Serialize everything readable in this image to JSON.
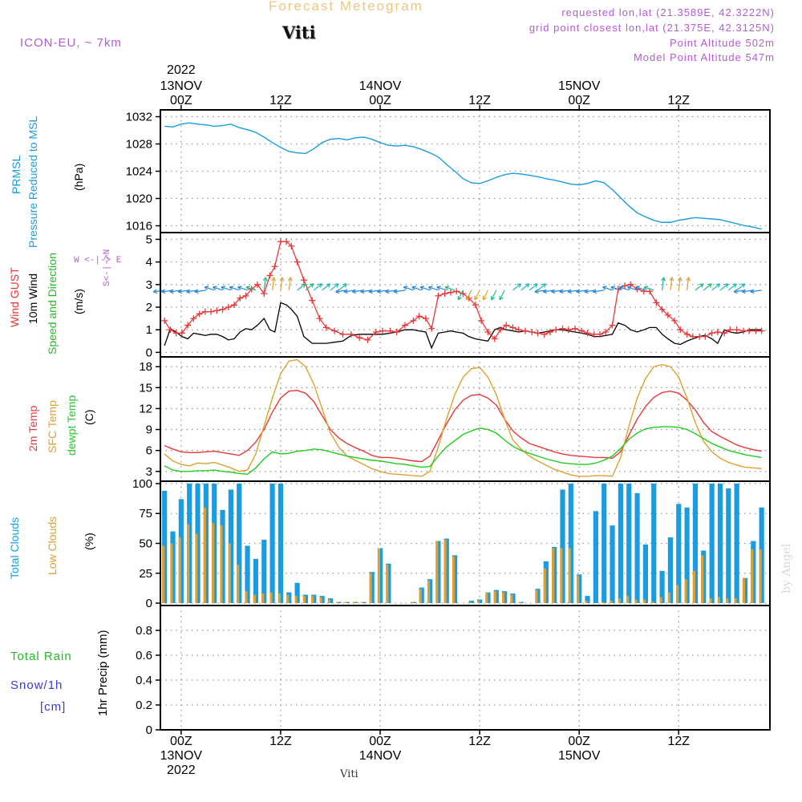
{
  "header": {
    "title": "Forecast Meteogram",
    "station": "Viti",
    "model": "ICON-EU, ~ 7km",
    "requested": "requested lon,lat (21.3589E, 42.3222N)",
    "grid_point": "grid point closest lon,lat (21.375E, 42.3125N)",
    "point_altitude": "Point Altitude 502m",
    "model_altitude": "Model Point Altitude 547m"
  },
  "footer": {
    "station": "Viti",
    "watermark": "by Angel"
  },
  "time_axis": {
    "top_year": "2022",
    "top_labels": [
      {
        "hour": 0,
        "lines": [
          "13NOV",
          "00Z"
        ]
      },
      {
        "hour": 12,
        "lines": [
          "12Z"
        ]
      },
      {
        "hour": 24,
        "lines": [
          "14NOV",
          "00Z"
        ]
      },
      {
        "hour": 36,
        "lines": [
          "12Z"
        ]
      },
      {
        "hour": 48,
        "lines": [
          "15NOV",
          "00Z"
        ]
      },
      {
        "hour": 60,
        "lines": [
          "12Z"
        ]
      }
    ],
    "bottom_labels": [
      {
        "hour": 0,
        "lines": [
          "00Z",
          "13NOV",
          "2022"
        ]
      },
      {
        "hour": 12,
        "lines": [
          "12Z"
        ]
      },
      {
        "hour": 24,
        "lines": [
          "00Z",
          "14NOV"
        ]
      },
      {
        "hour": 36,
        "lines": [
          "12Z"
        ]
      },
      {
        "hour": 48,
        "lines": [
          "00Z",
          "15NOV"
        ]
      },
      {
        "hour": 60,
        "lines": [
          "12Z"
        ]
      }
    ],
    "start_hour": -2.5,
    "end_hour": 71
  },
  "panel_labels": {
    "pressure": {
      "name": "PRMSL",
      "desc": "Pressure Reduced to MSL",
      "unit": "(hPa)",
      "color": "#1a9de0"
    },
    "wind": {
      "gust": "Wind GUST",
      "wind10": "10m Wind",
      "dir": "Speed and Direction",
      "unit": "(m/s)",
      "compass": "W <-|-> E",
      "compass_v": "S<-|->N",
      "gust_color": "#e8393a",
      "wind_color": "#000000",
      "dir_color": "#22bb22",
      "compass_color": "#b45bd6"
    },
    "temp": {
      "t2m": "2m Temp",
      "sfc": "SFC Temp",
      "dew": "dewpt Temp",
      "unit": "(C)",
      "t2m_color": "#e8393a",
      "sfc_color": "#e0a030",
      "dew_color": "#22cc22"
    },
    "clouds": {
      "total": "Total Clouds",
      "low": "Low Clouds",
      "unit": "(%)",
      "total_color": "#1a9de0",
      "low_color": "#e0a030"
    },
    "precip": {
      "rain": "Total  Rain",
      "snow": "Snow/1h",
      "snow_unit": "[cm]",
      "unit": "1hr Precip (mm)",
      "rain_color": "#22bb22",
      "snow_color": "#3a3ae0"
    }
  },
  "chart_data": [
    {
      "type": "line",
      "title": "PRMSL Pressure Reduced to MSL",
      "ylabel": "(hPa)",
      "ylim": [
        1015,
        1033
      ],
      "yticks": [
        1016,
        1020,
        1024,
        1028,
        1032
      ],
      "x": [
        -2,
        -1,
        0,
        1,
        2,
        3,
        4,
        5,
        6,
        7,
        8,
        9,
        10,
        11,
        12,
        13,
        14,
        15,
        16,
        17,
        18,
        19,
        20,
        21,
        22,
        23,
        24,
        25,
        26,
        27,
        28,
        29,
        30,
        31,
        32,
        33,
        34,
        35,
        36,
        37,
        38,
        39,
        40,
        41,
        42,
        43,
        44,
        45,
        46,
        47,
        48,
        49,
        50,
        51,
        52,
        53,
        54,
        55,
        56,
        57,
        58,
        59,
        60,
        61,
        62,
        63,
        64,
        65,
        66,
        67,
        68,
        69,
        70
      ],
      "series": [
        {
          "name": "PRMSL",
          "values": [
            1030.6,
            1030.5,
            1030.9,
            1031.1,
            1030.9,
            1030.8,
            1030.6,
            1030.7,
            1030.9,
            1030.4,
            1030.1,
            1029.7,
            1029.0,
            1028.2,
            1027.5,
            1026.9,
            1026.7,
            1026.6,
            1027.3,
            1028.2,
            1028.7,
            1028.8,
            1028.6,
            1028.9,
            1029.0,
            1028.7,
            1028.2,
            1027.8,
            1027.7,
            1027.8,
            1027.6,
            1027.2,
            1026.7,
            1026.1,
            1025.0,
            1024.0,
            1022.9,
            1022.3,
            1022.2,
            1022.6,
            1023.1,
            1023.5,
            1023.7,
            1023.6,
            1023.4,
            1023.2,
            1022.9,
            1022.7,
            1022.4,
            1022.1,
            1022.0,
            1022.2,
            1022.6,
            1022.3,
            1021.3,
            1020.1,
            1018.9,
            1017.9,
            1017.3,
            1016.8,
            1016.5,
            1016.5,
            1016.8,
            1017.0,
            1017.2,
            1017.1,
            1017.0,
            1016.9,
            1016.6,
            1016.3,
            1016.0,
            1015.8,
            1015.5
          ]
        }
      ]
    },
    {
      "type": "line",
      "title": "Wind GUST / 10m Wind Speed and Direction",
      "ylabel": "(m/s)",
      "ylim": [
        -0.2,
        5.3
      ],
      "yticks": [
        0,
        1,
        2,
        3,
        4,
        5
      ],
      "x": [
        -2,
        -1.3,
        -0.6,
        0.1,
        0.8,
        1.5,
        2.2,
        2.9,
        3.6,
        4.3,
        5,
        5.7,
        6.4,
        7.1,
        7.8,
        8.5,
        9.2,
        10,
        10.7,
        11.3,
        12,
        12.7,
        13.3,
        14,
        14.8,
        15.8,
        16.7,
        17.5,
        18.5,
        19.5,
        20.5,
        21.5,
        22.5,
        23.5,
        24.3,
        25.2,
        26,
        27,
        28,
        28.7,
        29.5,
        30.2,
        31,
        31.8,
        32.5,
        33.2,
        34,
        34.7,
        35.5,
        36.2,
        37,
        37.8,
        38.5,
        39.2,
        40,
        40.7,
        41.5,
        42.3,
        43,
        43.8,
        44.5,
        45.2,
        46,
        46.7,
        47.5,
        48.3,
        49,
        49.8,
        50.5,
        51.2,
        52,
        52.7,
        53.5,
        54.2,
        55,
        55.8,
        56.5,
        57.3,
        58,
        58.7,
        59.5,
        60.2,
        61,
        61.7,
        62.5,
        63.2,
        64,
        64.7,
        65.5,
        66.2,
        67,
        67.8,
        68.5,
        69.3,
        70
      ],
      "series": [
        {
          "name": "Wind GUST",
          "values": [
            1.4,
            1.0,
            0.85,
            0.85,
            1.2,
            1.5,
            1.7,
            1.8,
            1.8,
            1.85,
            1.9,
            2.0,
            2.1,
            2.4,
            2.5,
            2.8,
            3.0,
            2.6,
            3.4,
            3.8,
            4.9,
            4.9,
            4.7,
            4.0,
            3.2,
            2.3,
            1.5,
            1.1,
            0.95,
            0.8,
            0.8,
            0.65,
            0.55,
            0.9,
            0.95,
            0.95,
            0.9,
            1.2,
            1.4,
            1.6,
            1.5,
            1.05,
            2.5,
            2.6,
            2.65,
            2.7,
            2.6,
            2.4,
            2.1,
            1.4,
            0.9,
            0.6,
            1.0,
            1.2,
            1.1,
            1.0,
            0.95,
            0.9,
            0.85,
            0.8,
            0.9,
            1.0,
            1.05,
            1.0,
            1.05,
            0.95,
            0.85,
            0.8,
            0.8,
            0.9,
            1.2,
            2.8,
            2.95,
            3.0,
            2.8,
            2.7,
            2.7,
            2.2,
            1.9,
            1.65,
            1.4,
            1.0,
            0.8,
            0.7,
            0.7,
            0.7,
            0.85,
            0.9,
            0.85,
            1.0,
            1.0,
            0.95,
            0.95,
            0.95,
            0.95
          ]
        },
        {
          "name": "10m Wind",
          "values": [
            0.3,
            1.05,
            0.9,
            0.7,
            0.6,
            0.85,
            0.8,
            0.75,
            0.8,
            0.8,
            0.7,
            0.55,
            0.6,
            0.9,
            1.05,
            1.0,
            1.2,
            1.5,
            1.0,
            0.9,
            2.2,
            2.1,
            1.9,
            1.6,
            0.7,
            0.4,
            0.4,
            0.4,
            0.45,
            0.5,
            0.75,
            0.8,
            0.8,
            0.8,
            0.8,
            0.85,
            0.9,
            1.0,
            1.0,
            0.95,
            0.9,
            0.2,
            0.85,
            0.9,
            0.95,
            0.9,
            0.85,
            0.7,
            0.6,
            0.55,
            0.5,
            1.0,
            1.1,
            1.0,
            0.95,
            0.9,
            0.95,
            0.9,
            0.85,
            0.9,
            0.95,
            1.0,
            1.0,
            0.95,
            0.9,
            0.85,
            0.8,
            0.7,
            0.7,
            0.75,
            0.8,
            1.3,
            1.2,
            1.0,
            0.9,
            1.0,
            1.1,
            1.1,
            0.8,
            0.6,
            0.4,
            0.35,
            0.5,
            0.6,
            0.7,
            0.75,
            0.6,
            0.4,
            1.0,
            0.9,
            0.85,
            0.9,
            1.0,
            1.0,
            1.0
          ]
        }
      ]
    },
    {
      "type": "line",
      "title": "2m Temp / SFC Temp / dewpt Temp",
      "ylabel": "(C)",
      "ylim": [
        1.6,
        19.4
      ],
      "yticks": [
        3,
        6,
        9,
        12,
        15,
        18
      ],
      "x": [
        -2,
        -1,
        0,
        1,
        2,
        3,
        4,
        5,
        6,
        7,
        8,
        9,
        10,
        11,
        12,
        13,
        14,
        15,
        16,
        17,
        18,
        19,
        20,
        21,
        22,
        23,
        24,
        25,
        26,
        27,
        28,
        29,
        30,
        31,
        32,
        33,
        34,
        35,
        36,
        37,
        38,
        39,
        40,
        41,
        42,
        43,
        44,
        45,
        46,
        47,
        48,
        49,
        50,
        51,
        52,
        53,
        54,
        55,
        56,
        57,
        58,
        59,
        60,
        61,
        62,
        63,
        64,
        65,
        66,
        67,
        68,
        69,
        70
      ],
      "series": [
        {
          "name": "2m Temp",
          "values": [
            6.7,
            6.2,
            5.8,
            5.7,
            5.7,
            5.8,
            5.9,
            5.7,
            5.5,
            5.3,
            6.0,
            7.2,
            9.0,
            11.5,
            13.5,
            14.5,
            14.6,
            14.2,
            13.0,
            11.0,
            9.0,
            7.8,
            7.0,
            6.4,
            5.9,
            5.3,
            5.0,
            5.0,
            4.9,
            4.7,
            4.5,
            4.4,
            5.2,
            7.5,
            9.8,
            11.8,
            13.2,
            13.9,
            14.0,
            13.5,
            12.5,
            10.5,
            8.8,
            7.8,
            7.0,
            6.6,
            6.2,
            5.8,
            5.5,
            5.3,
            5.2,
            5.1,
            5.0,
            5.0,
            4.9,
            5.8,
            8.2,
            10.5,
            12.3,
            13.6,
            14.3,
            14.5,
            14.2,
            13.2,
            11.8,
            10.0,
            8.7,
            8.0,
            7.4,
            6.8,
            6.4,
            6.1,
            5.9
          ]
        },
        {
          "name": "SFC Temp",
          "values": [
            5.5,
            4.5,
            4.0,
            3.8,
            4.2,
            4.1,
            4.3,
            3.9,
            3.5,
            3.0,
            3.2,
            5.5,
            9.5,
            13.5,
            17.0,
            18.8,
            19.0,
            18.0,
            15.5,
            12.0,
            8.5,
            6.5,
            5.2,
            4.6,
            4.0,
            3.4,
            3.0,
            2.7,
            2.6,
            2.5,
            2.4,
            2.3,
            3.0,
            6.5,
            10.5,
            14.0,
            16.5,
            17.7,
            17.9,
            16.5,
            14.0,
            10.5,
            7.5,
            6.2,
            5.2,
            4.5,
            3.9,
            3.3,
            2.9,
            2.5,
            2.3,
            2.3,
            2.4,
            2.4,
            2.3,
            5.0,
            9.5,
            13.5,
            16.3,
            18.0,
            18.3,
            18.0,
            16.5,
            13.5,
            10.0,
            7.3,
            5.8,
            4.9,
            4.3,
            3.9,
            3.6,
            3.5,
            3.4
          ]
        },
        {
          "name": "dewpt Temp",
          "values": [
            3.8,
            3.2,
            3.0,
            3.0,
            3.1,
            3.1,
            3.2,
            3.0,
            2.9,
            2.7,
            2.6,
            3.5,
            4.8,
            5.8,
            5.5,
            5.6,
            5.9,
            6.0,
            6.2,
            6.1,
            5.8,
            5.5,
            5.2,
            5.0,
            4.8,
            4.6,
            4.5,
            4.3,
            4.1,
            4.0,
            3.8,
            3.6,
            3.7,
            5.2,
            6.5,
            7.4,
            8.3,
            8.8,
            9.2,
            9.0,
            8.5,
            7.5,
            6.6,
            6.0,
            5.6,
            5.2,
            4.8,
            4.5,
            4.2,
            4.1,
            4.0,
            4.0,
            4.2,
            4.6,
            5.2,
            6.3,
            7.6,
            8.5,
            9.1,
            9.3,
            9.4,
            9.4,
            9.3,
            9.0,
            8.4,
            7.7,
            7.0,
            6.5,
            6.0,
            5.7,
            5.4,
            5.2,
            5.0
          ]
        }
      ]
    },
    {
      "type": "bar",
      "title": "Total Clouds / Low Clouds",
      "ylabel": "(%)",
      "ylim": [
        -2,
        102
      ],
      "yticks": [
        0,
        25,
        50,
        75,
        100
      ],
      "x": [
        -2,
        -1,
        0,
        1,
        2,
        3,
        4,
        5,
        6,
        7,
        8,
        9,
        10,
        11,
        12,
        13,
        14,
        15,
        16,
        17,
        18,
        19,
        20,
        21,
        22,
        23,
        24,
        25,
        26,
        27,
        28,
        29,
        30,
        31,
        32,
        33,
        34,
        35,
        36,
        37,
        38,
        39,
        40,
        41,
        42,
        43,
        44,
        45,
        46,
        47,
        48,
        49,
        50,
        51,
        52,
        53,
        54,
        55,
        56,
        57,
        58,
        59,
        60,
        61,
        62,
        63,
        64,
        65,
        66,
        67,
        68,
        69,
        70
      ],
      "series": [
        {
          "name": "Total Clouds",
          "values": [
            94,
            60,
            87,
            100,
            100,
            100,
            100,
            78,
            95,
            100,
            48,
            37,
            53,
            100,
            100,
            9,
            17,
            7,
            7,
            6,
            4,
            1,
            1,
            1,
            1,
            26,
            46,
            33,
            0,
            0,
            1,
            13,
            20,
            52,
            54,
            40,
            0,
            2,
            3,
            9,
            11,
            10,
            8,
            1,
            0,
            12,
            35,
            47,
            95,
            100,
            24,
            6,
            77,
            100,
            65,
            100,
            100,
            92,
            49,
            100,
            27,
            55,
            83,
            80,
            100,
            44,
            100,
            100,
            96,
            100,
            21,
            52,
            80
          ]
        },
        {
          "name": "Low Clouds",
          "values": [
            48,
            50,
            55,
            66,
            58,
            80,
            67,
            65,
            50,
            32,
            10,
            7,
            8,
            9,
            8,
            7,
            6,
            6,
            6,
            5,
            3,
            1,
            1,
            1,
            1,
            25,
            46,
            32,
            0,
            0,
            1,
            12,
            19,
            52,
            53,
            39,
            0,
            1,
            2,
            9,
            10,
            9,
            7,
            1,
            0,
            11,
            29,
            46,
            46,
            46,
            23,
            2,
            0,
            1,
            2,
            4,
            6,
            3,
            3,
            1,
            5,
            9,
            15,
            20,
            27,
            40,
            4,
            5,
            4,
            4,
            21,
            45,
            45
          ]
        }
      ]
    },
    {
      "type": "bar",
      "title": "Total Rain / Snow 1h",
      "ylabel": "1hr Precip (mm)",
      "ylim": [
        0,
        1.0
      ],
      "yticks": [
        0,
        0.2,
        0.4,
        0.6,
        0.8
      ],
      "x": [],
      "series": [
        {
          "name": "Total Rain",
          "values": []
        },
        {
          "name": "Snow/1h",
          "values": []
        }
      ]
    }
  ]
}
